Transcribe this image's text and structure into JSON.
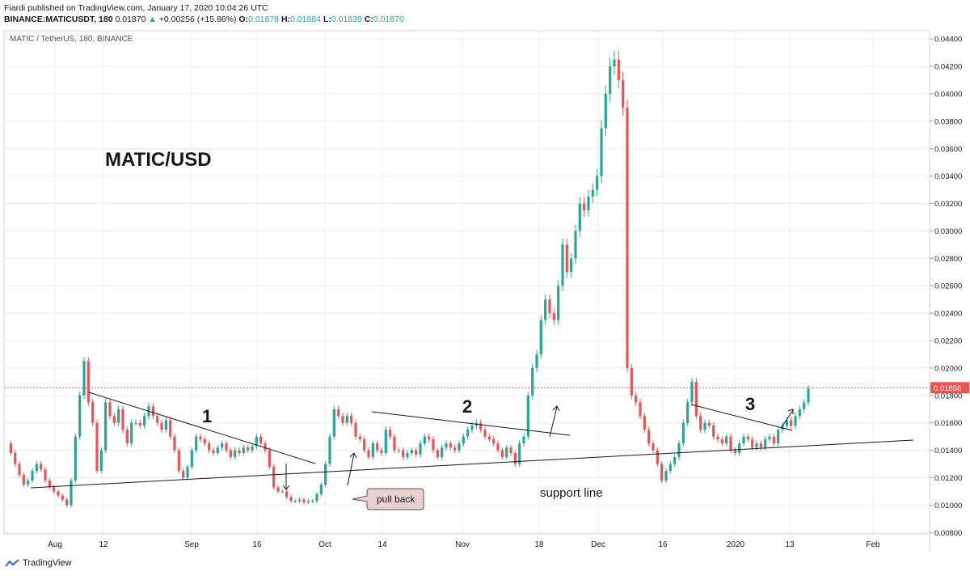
{
  "header": {
    "line1": "Fiardi published on TradingView.com, January 17, 2020 10:04:26 UTC",
    "symbol": "BINANCE:MATICUSDT, 180",
    "last": "0.01870",
    "change": "+0.00256 (+15.86%)",
    "o_label": "O:",
    "o": "0.01878",
    "h_label": "H:",
    "h": "0.01884",
    "l_label": "L:",
    "l": "0.01839",
    "c_label": "C:",
    "c": "0.01870"
  },
  "chart_data": {
    "type": "line",
    "title": "MATIC / TetherUS, 180, BINANCE",
    "annotation_title": "MATIC/USD",
    "ylim": [
      0.0079,
      0.0446
    ],
    "y_ticks": [
      "0.00800",
      "0.01000",
      "0.01200",
      "0.01400",
      "0.01600",
      "0.01800",
      "0.02000",
      "0.02200",
      "0.02400",
      "0.02600",
      "0.02800",
      "0.03000",
      "0.03200",
      "0.03400",
      "0.03600",
      "0.03800",
      "0.04000",
      "0.04200",
      "0.04400"
    ],
    "x_ticks": [
      "Aug",
      "12",
      "Sep",
      "16",
      "Oct",
      "14",
      "Nov",
      "18",
      "Dec",
      "16",
      "2020",
      "13",
      "Feb"
    ],
    "current_price_label": "0.01856",
    "current_price": 0.01856,
    "colors": {
      "up": "#26a69a",
      "down": "#ef5350",
      "line": "#5d2b1f",
      "price_line": "#ef5350",
      "grid": "#e9ecf1"
    },
    "series": [
      {
        "values": [
          0.0145,
          0.0138,
          0.013,
          0.0122,
          0.0115,
          0.0118,
          0.0125,
          0.013,
          0.0126,
          0.0118,
          0.0113,
          0.011,
          0.0107,
          0.0104,
          0.01,
          0.0118,
          0.015,
          0.018,
          0.0205,
          0.0175,
          0.016,
          0.0125,
          0.014,
          0.0175,
          0.0165,
          0.016,
          0.017,
          0.0155,
          0.0145,
          0.016,
          0.016,
          0.0158,
          0.0165,
          0.0172,
          0.0165,
          0.016,
          0.0155,
          0.0162,
          0.015,
          0.014,
          0.0125,
          0.012,
          0.0128,
          0.014,
          0.015,
          0.0148,
          0.0145,
          0.014,
          0.0138,
          0.0142,
          0.0145,
          0.014,
          0.0135,
          0.014,
          0.0138,
          0.0142,
          0.014,
          0.0143,
          0.015,
          0.0145,
          0.014,
          0.0128,
          0.0113,
          0.011,
          0.011,
          0.0106,
          0.0103,
          0.0103,
          0.0104,
          0.0102,
          0.0103,
          0.0103,
          0.0108,
          0.0115,
          0.013,
          0.015,
          0.017,
          0.0165,
          0.016,
          0.0165,
          0.016,
          0.015,
          0.0148,
          0.014,
          0.0135,
          0.0145,
          0.014,
          0.0138,
          0.0155,
          0.015,
          0.014,
          0.014,
          0.0135,
          0.0138,
          0.014,
          0.0137,
          0.0145,
          0.015,
          0.0148,
          0.014,
          0.0135,
          0.0142,
          0.0145,
          0.0142,
          0.014,
          0.0145,
          0.015,
          0.0155,
          0.0158,
          0.016,
          0.0155,
          0.015,
          0.0148,
          0.0145,
          0.014,
          0.0135,
          0.0142,
          0.0138,
          0.013,
          0.0145,
          0.015,
          0.018,
          0.02,
          0.021,
          0.0235,
          0.025,
          0.024,
          0.0235,
          0.026,
          0.029,
          0.027,
          0.028,
          0.03,
          0.032,
          0.0315,
          0.0325,
          0.033,
          0.034,
          0.0375,
          0.04,
          0.042,
          0.0425,
          0.041,
          0.039,
          0.02,
          0.018,
          0.0175,
          0.0165,
          0.0155,
          0.0145,
          0.014,
          0.013,
          0.0118,
          0.0125,
          0.013,
          0.0135,
          0.0145,
          0.016,
          0.0175,
          0.019,
          0.0165,
          0.0155,
          0.016,
          0.0158,
          0.015,
          0.0148,
          0.0145,
          0.015,
          0.014,
          0.0138,
          0.0145,
          0.015,
          0.0148,
          0.0142,
          0.0145,
          0.0142,
          0.0148,
          0.015,
          0.0145,
          0.0155,
          0.0158,
          0.0162,
          0.0158,
          0.0165,
          0.017,
          0.0175,
          0.0185
        ]
      }
    ],
    "annotations": {
      "labels": [
        "1",
        "2",
        "3"
      ],
      "pull_back": "pull back",
      "support_line": "support line"
    }
  },
  "footer": {
    "brand": "TradingView"
  }
}
